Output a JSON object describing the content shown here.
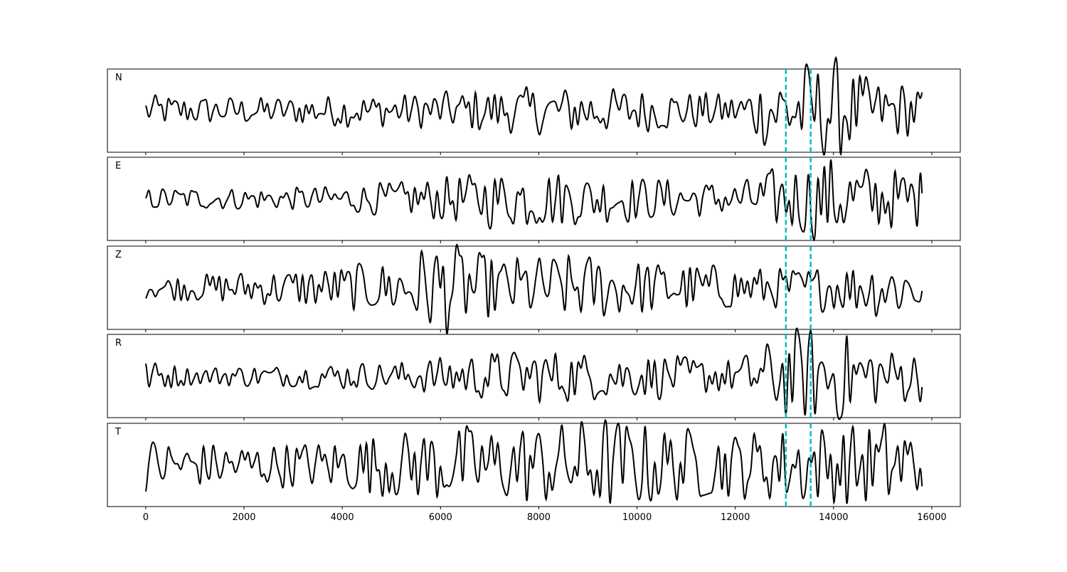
{
  "chart_data": {
    "type": "line",
    "title": "",
    "xlabel": "",
    "ylabel": "",
    "xlim": [
      -780,
      16580
    ],
    "x_ticks": [
      0,
      2000,
      4000,
      6000,
      8000,
      10000,
      12000,
      14000,
      16000
    ],
    "x_tick_labels": [
      "0",
      "2000",
      "4000",
      "6000",
      "8000",
      "10000",
      "12000",
      "14000",
      "16000"
    ],
    "data_x_range": [
      0,
      15810
    ],
    "grid": false,
    "y_ticks_visible": false,
    "line_color": "#000000",
    "marker_color": "#00bfbf",
    "vertical_markers": [
      13030,
      13535
    ],
    "panels": [
      {
        "label": "N",
        "amplitude_envelope_per_1000": [
          0.3,
          0.25,
          0.25,
          0.25,
          0.3,
          0.3,
          0.35,
          0.4,
          0.45,
          0.45,
          0.4,
          0.35,
          0.3,
          0.85,
          0.9,
          0.5
        ]
      },
      {
        "label": "E",
        "amplitude_envelope_per_1000": [
          0.2,
          0.2,
          0.2,
          0.2,
          0.25,
          0.3,
          0.4,
          0.5,
          0.55,
          0.45,
          0.4,
          0.35,
          0.3,
          0.6,
          0.8,
          0.55
        ]
      },
      {
        "label": "Z",
        "amplitude_envelope_per_1000": [
          0.2,
          0.25,
          0.3,
          0.35,
          0.4,
          0.5,
          0.9,
          0.55,
          0.6,
          0.6,
          0.5,
          0.45,
          0.4,
          0.35,
          0.4,
          0.55
        ]
      },
      {
        "label": "R",
        "amplitude_envelope_per_1000": [
          0.3,
          0.15,
          0.2,
          0.2,
          0.25,
          0.25,
          0.35,
          0.45,
          0.5,
          0.45,
          0.4,
          0.35,
          0.3,
          0.8,
          0.9,
          0.5
        ]
      },
      {
        "label": "T",
        "amplitude_envelope_per_1000": [
          0.5,
          0.4,
          0.4,
          0.4,
          0.5,
          0.6,
          0.7,
          0.7,
          0.75,
          0.85,
          0.8,
          0.65,
          0.6,
          0.7,
          0.7,
          0.8
        ]
      }
    ]
  }
}
